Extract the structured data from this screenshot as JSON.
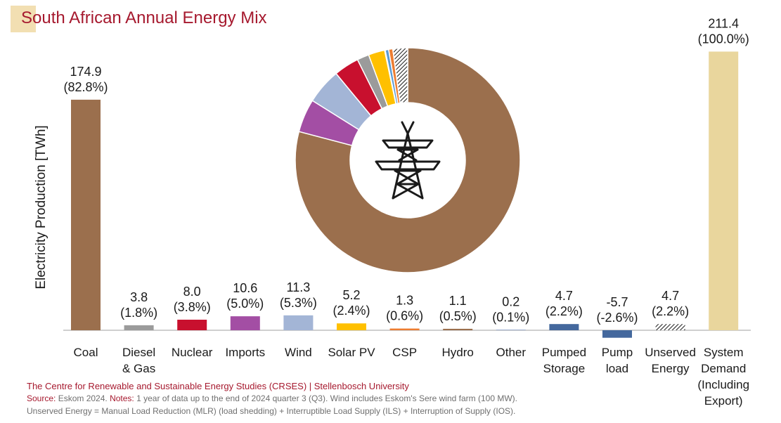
{
  "colors": {
    "coal": "#9b6f4d",
    "diesel_gas": "#9b9b9b",
    "nuclear": "#c8102e",
    "imports": "#a34ea4",
    "wind": "#a3b5d6",
    "solar_pv": "#ffc000",
    "csp": "#ed7d31",
    "hydro": "#9b6f4d",
    "other": "#4472c4",
    "pumped_storage": "#44689d",
    "pump_load": "#44689d",
    "unserved": "hatched-black",
    "system_demand": "#e9d69d",
    "title": "#a6192e",
    "footer_source": "#6f6f6f"
  },
  "icons": {
    "center": "power-transmission-tower-icon"
  },
  "chart_data": {
    "type": "bar",
    "title": "South African Annual Energy Mix",
    "ylabel": "Electricity Production [TWh]",
    "xlabel": "",
    "ylim": [
      -6,
      212
    ],
    "grid": false,
    "categories": [
      [
        "Coal"
      ],
      [
        "Diesel",
        "& Gas"
      ],
      [
        "Nuclear"
      ],
      [
        "Imports"
      ],
      [
        "Wind"
      ],
      [
        "Solar PV"
      ],
      [
        "CSP"
      ],
      [
        "Hydro"
      ],
      [
        "Other"
      ],
      [
        "Pumped",
        "Storage"
      ],
      [
        "Pump",
        "load"
      ],
      [
        "Unserved",
        "Energy"
      ],
      [
        "System",
        "Demand",
        "(Including",
        "Export)"
      ]
    ],
    "values": [
      174.9,
      3.8,
      8.0,
      10.6,
      11.3,
      5.2,
      1.3,
      1.1,
      0.2,
      4.7,
      -5.7,
      4.7,
      211.4
    ],
    "value_labels": [
      "174.9",
      "3.8",
      "8.0",
      "10.6",
      "11.3",
      "5.2",
      "1.3",
      "1.1",
      "0.2",
      "4.7",
      "-5.7",
      "4.7",
      "211.4"
    ],
    "percent_labels": [
      "(82.8%)",
      "(1.8%)",
      "(3.8%)",
      "(5.0%)",
      "(5.3%)",
      "(2.4%)",
      "(0.6%)",
      "(0.5%)",
      "(0.1%)",
      "(2.2%)",
      "(-2.6%)",
      "(2.2%)",
      "(100.0%)"
    ],
    "bar_colors": [
      "#9b6f4d",
      "#9b9b9b",
      "#c8102e",
      "#a34ea4",
      "#a3b5d6",
      "#ffc000",
      "#ed7d31",
      "#9b6f4d",
      "#4472c4",
      "#44689d",
      "#44689d",
      "hatch",
      "#e9d69d"
    ],
    "donut": {
      "type": "pie",
      "start_from": "top-clockwise",
      "slices": [
        {
          "category": "Coal",
          "value": 174.9,
          "color": "#9b6f4d"
        },
        {
          "category": "Imports",
          "value": 10.6,
          "color": "#a34ea4"
        },
        {
          "category": "Wind",
          "value": 11.3,
          "color": "#a3b5d6"
        },
        {
          "category": "Nuclear",
          "value": 8.0,
          "color": "#c8102e"
        },
        {
          "category": "Diesel & Gas",
          "value": 3.8,
          "color": "#9b9b9b"
        },
        {
          "category": "Solar PV",
          "value": 5.2,
          "color": "#ffc000"
        },
        {
          "category": "Other",
          "value": 0.2,
          "color": "#4472c4"
        },
        {
          "category": "Hydro",
          "value": 1.1,
          "color": "#5b9bd5"
        },
        {
          "category": "CSP",
          "value": 1.3,
          "color": "#ed7d31"
        },
        {
          "category": "Unserved Energy",
          "value": 4.7,
          "color": "hatch"
        }
      ]
    }
  },
  "footer": {
    "org": "The Centre for Renewable and Sustainable Energy Studies (CRSES) | Stellenbosch University",
    "source_label": "Source:",
    "source_text": " Eskom 2024. ",
    "notes_label": "Notes:",
    "notes_text": " 1 year of data up to the end of 2024 quarter 3 (Q3). Wind includes Eskom's Sere wind farm (100 MW).",
    "unserved_note": "Unserved Energy = Manual Load Reduction (MLR) (load shedding) + Interruptible Load Supply (ILS) + Interruption of Supply (IOS)."
  }
}
